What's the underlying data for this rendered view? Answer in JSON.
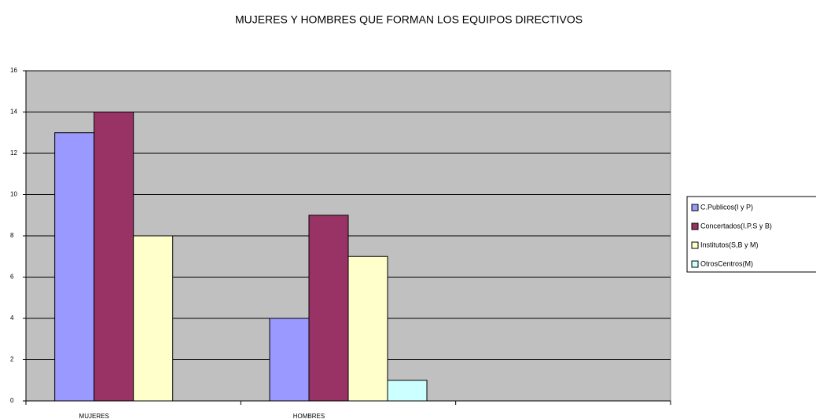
{
  "chart_data": {
    "type": "bar",
    "title": "MUJERES Y HOMBRES QUE FORMAN LOS EQUIPOS DIRECTIVOS",
    "categories": [
      "MUJERES",
      "HOMBRES",
      null
    ],
    "series": [
      {
        "name": "C.Publicos(I y P)",
        "color": "#9999ff",
        "values": [
          13,
          4,
          null
        ]
      },
      {
        "name": "Concertados(I.P.S y B)",
        "color": "#993366",
        "values": [
          14,
          9,
          null
        ]
      },
      {
        "name": "Institutos(S,B y M)",
        "color": "#ffffcc",
        "values": [
          8,
          7,
          null
        ]
      },
      {
        "name": "OtrosCentros(M)",
        "color": "#ccffff",
        "values": [
          null,
          1,
          null
        ]
      }
    ],
    "ylim": [
      0,
      16
    ],
    "yticks": [
      0,
      2,
      4,
      6,
      8,
      10,
      12,
      14,
      16
    ],
    "grid": true,
    "legend": "right"
  }
}
